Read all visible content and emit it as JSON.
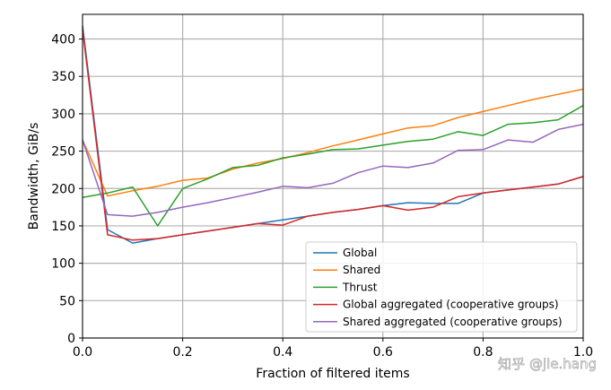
{
  "chart_data": {
    "type": "line",
    "title": "",
    "xlabel": "Fraction of filtered items",
    "ylabel": "Bandwidth, GiB/s",
    "xlim": [
      0,
      1.0
    ],
    "ylim": [
      0,
      433
    ],
    "grid": true,
    "legend_position": "bottom-right",
    "x_ticks": [
      0.0,
      0.2,
      0.4,
      0.6,
      0.8,
      1.0
    ],
    "x_tick_labels": [
      "0.0",
      "0.2",
      "0.4",
      "0.6",
      "0.8",
      "1.0"
    ],
    "y_ticks": [
      0,
      50,
      100,
      150,
      200,
      250,
      300,
      350,
      400
    ],
    "y_tick_labels": [
      "0",
      "50",
      "100",
      "150",
      "200",
      "250",
      "300",
      "350",
      "400"
    ],
    "x": [
      0.0,
      0.05,
      0.1,
      0.15,
      0.2,
      0.25,
      0.3,
      0.35,
      0.4,
      0.45,
      0.5,
      0.55,
      0.6,
      0.65,
      0.7,
      0.75,
      0.8,
      0.85,
      0.9,
      0.95,
      1.0
    ],
    "series": [
      {
        "name": "Global",
        "color": "#1f77b4",
        "values": [
          418,
          145,
          127,
          133,
          138,
          143,
          148,
          153,
          158,
          163,
          168,
          172,
          177,
          181,
          180,
          180,
          194,
          198,
          202,
          206,
          216
        ]
      },
      {
        "name": "Shared",
        "color": "#ff7f0e",
        "values": [
          265,
          190,
          197,
          203,
          211,
          214,
          226,
          234,
          240,
          248,
          257,
          265,
          273,
          281,
          284,
          295,
          303,
          311,
          319,
          326,
          333
        ]
      },
      {
        "name": "Thrust",
        "color": "#2ca02c",
        "values": [
          188,
          194,
          202,
          150,
          200,
          213,
          228,
          231,
          241,
          246,
          252,
          253,
          258,
          263,
          266,
          276,
          271,
          286,
          288,
          292,
          311
        ]
      },
      {
        "name": "Global aggregated (cooperative groups)",
        "color": "#d62728",
        "values": [
          413,
          138,
          131,
          133,
          138,
          143,
          148,
          153,
          151,
          163,
          168,
          172,
          177,
          171,
          175,
          189,
          194,
          198,
          202,
          206,
          216
        ]
      },
      {
        "name": "Shared aggregated (cooperative groups)",
        "color": "#9467bd",
        "values": [
          265,
          165,
          163,
          168,
          175,
          181,
          188,
          195,
          203,
          201,
          207,
          221,
          230,
          228,
          234,
          251,
          252,
          265,
          262,
          279,
          286
        ]
      }
    ],
    "watermark": "知乎 @jie.hang"
  }
}
